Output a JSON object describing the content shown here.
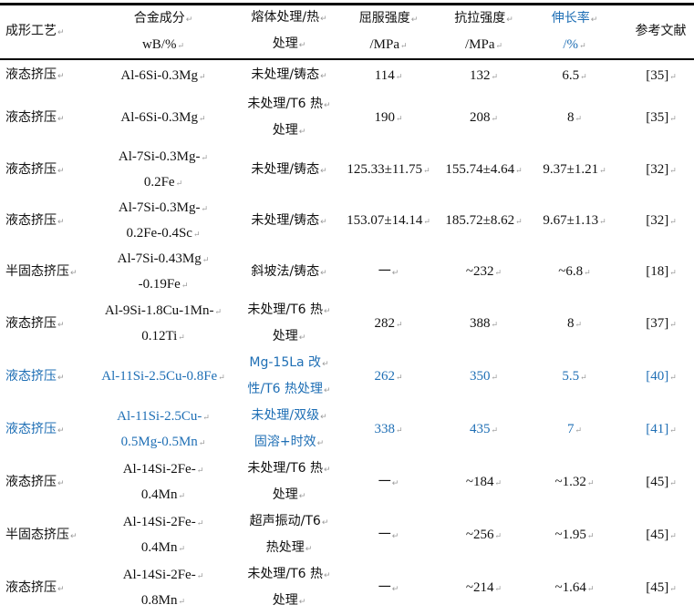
{
  "table": {
    "headers": [
      {
        "lines": [
          "成形工艺"
        ]
      },
      {
        "lines": [
          "合金成分",
          "wB/%"
        ]
      },
      {
        "lines": [
          "熔体处理/热",
          "处理"
        ]
      },
      {
        "lines": [
          "屈服强度",
          "/MPa"
        ]
      },
      {
        "lines": [
          "抗拉强度",
          "/MPa"
        ]
      },
      {
        "lines": [
          "伸长率",
          "/%"
        ],
        "highlight": true
      },
      {
        "lines": [
          "参考文献"
        ]
      }
    ],
    "rows": [
      {
        "cells": [
          [
            "液态挤压"
          ],
          [
            "Al-6Si-0.3Mg"
          ],
          [
            "未处理/铸态"
          ],
          [
            "114"
          ],
          [
            "132"
          ],
          [
            "6.5"
          ],
          [
            "[35]"
          ]
        ]
      },
      {
        "cells": [
          [
            "液态挤压"
          ],
          [
            "Al-6Si-0.3Mg"
          ],
          [
            "未处理/T6 热",
            "处理"
          ],
          [
            "190"
          ],
          [
            "208"
          ],
          [
            "8"
          ],
          [
            "[35]"
          ]
        ]
      },
      {
        "cells": [
          [
            "液态挤压"
          ],
          [
            "Al-7Si-0.3Mg-",
            "0.2Fe"
          ],
          [
            "未处理/铸态"
          ],
          [
            "125.33±11.75"
          ],
          [
            "155.74±4.64"
          ],
          [
            "9.37±1.21"
          ],
          [
            "[32]"
          ]
        ]
      },
      {
        "cells": [
          [
            "液态挤压"
          ],
          [
            "Al-7Si-0.3Mg-",
            "0.2Fe-0.4Sc"
          ],
          [
            "未处理/铸态"
          ],
          [
            "153.07±14.14"
          ],
          [
            "185.72±8.62"
          ],
          [
            "9.67±1.13"
          ],
          [
            "[32]"
          ]
        ]
      },
      {
        "cells": [
          [
            "半固态挤压"
          ],
          [
            "Al-7Si-0.43Mg",
            "-0.19Fe"
          ],
          [
            "斜坡法/铸态"
          ],
          [
            "一"
          ],
          [
            "~232"
          ],
          [
            "~6.8"
          ],
          [
            "[18]"
          ]
        ]
      },
      {
        "cells": [
          [
            "液态挤压"
          ],
          [
            "Al-9Si-1.8Cu-1Mn-",
            "0.12Ti"
          ],
          [
            "未处理/T6 热",
            "处理"
          ],
          [
            "282"
          ],
          [
            "388"
          ],
          [
            "8"
          ],
          [
            "[37]"
          ]
        ]
      },
      {
        "cells": [
          [
            "液态挤压"
          ],
          [
            "Al-11Si-2.5Cu-0.8Fe"
          ],
          [
            "Mg-15La 改",
            "性/T6 热处理"
          ],
          [
            "262"
          ],
          [
            "350"
          ],
          [
            "5.5"
          ],
          [
            "[40]"
          ]
        ],
        "highlight": true
      },
      {
        "cells": [
          [
            "液态挤压"
          ],
          [
            "Al-11Si-2.5Cu-",
            "0.5Mg-0.5Mn"
          ],
          [
            "未处理/双级",
            "固溶+时效"
          ],
          [
            "338"
          ],
          [
            "435"
          ],
          [
            "7"
          ],
          [
            "[41]"
          ]
        ],
        "highlight": true
      },
      {
        "cells": [
          [
            "液态挤压"
          ],
          [
            "Al-14Si-2Fe-",
            "0.4Mn"
          ],
          [
            "未处理/T6 热",
            "处理"
          ],
          [
            "一"
          ],
          [
            "~184"
          ],
          [
            "~1.32"
          ],
          [
            "[45]"
          ]
        ]
      },
      {
        "cells": [
          [
            "半固态挤压"
          ],
          [
            "Al-14Si-2Fe-",
            "0.4Mn"
          ],
          [
            "超声振动/T6",
            "热处理"
          ],
          [
            "一"
          ],
          [
            "~256"
          ],
          [
            "~1.95"
          ],
          [
            "[45]"
          ]
        ]
      },
      {
        "cells": [
          [
            "液态挤压"
          ],
          [
            "Al-14Si-2Fe-",
            "0.8Mn"
          ],
          [
            "未处理/T6 热",
            "处理"
          ],
          [
            "一"
          ],
          [
            "~214"
          ],
          [
            "~1.64"
          ],
          [
            "[45]"
          ]
        ]
      }
    ]
  },
  "colors": {
    "highlight": "#1f6fb5",
    "text": "#111111"
  }
}
